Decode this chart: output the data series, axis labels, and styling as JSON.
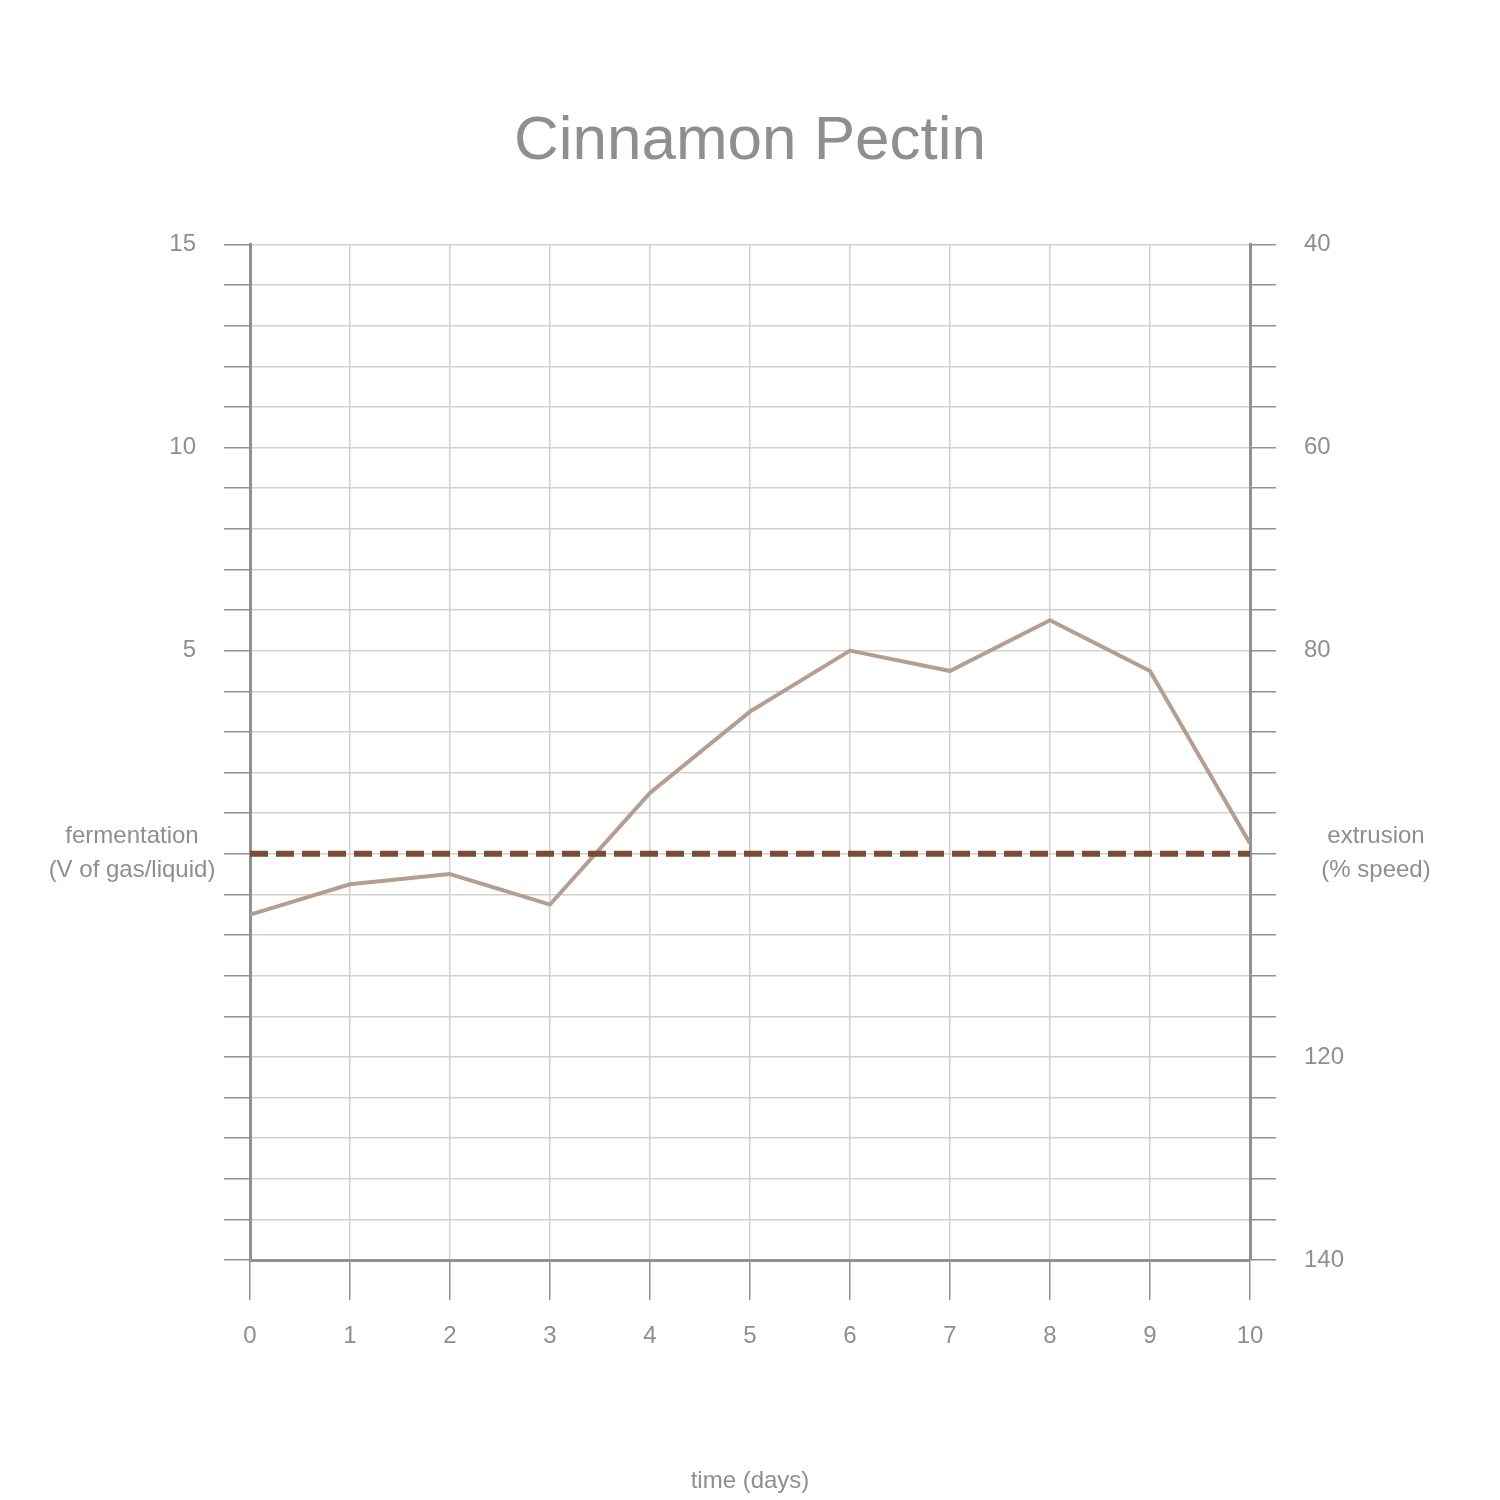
{
  "chart_data": {
    "type": "line",
    "title": "Cinnamon Pectin",
    "xlabel": "time (days)",
    "ylabel": "fermentation (V of gas/liquid)",
    "y2label": "extrusion (% speed)",
    "x": [
      0,
      1,
      2,
      3,
      4,
      5,
      6,
      7,
      8,
      9,
      10
    ],
    "xlim": [
      0,
      10
    ],
    "xticks": [
      0,
      1,
      2,
      3,
      4,
      5,
      6,
      7,
      8,
      9,
      10
    ],
    "ylim": [
      -10,
      15
    ],
    "yticks": [
      {
        "value": -10,
        "label": null
      },
      {
        "value": -9,
        "label": null
      },
      {
        "value": -8,
        "label": null
      },
      {
        "value": -7,
        "label": null
      },
      {
        "value": -6,
        "label": null
      },
      {
        "value": -5,
        "label": null
      },
      {
        "value": -4,
        "label": null
      },
      {
        "value": -3,
        "label": null
      },
      {
        "value": -2,
        "label": null
      },
      {
        "value": -1,
        "label": null
      },
      {
        "value": 0,
        "label": null
      },
      {
        "value": 1,
        "label": null
      },
      {
        "value": 2,
        "label": null
      },
      {
        "value": 3,
        "label": null
      },
      {
        "value": 4,
        "label": null
      },
      5,
      {
        "value": 6,
        "label": null
      },
      {
        "value": 7,
        "label": null
      },
      {
        "value": 8,
        "label": null
      },
      {
        "value": 9,
        "label": null
      },
      10,
      {
        "value": 11,
        "label": null
      },
      {
        "value": 12,
        "label": null
      },
      {
        "value": 13,
        "label": null
      },
      {
        "value": 14,
        "label": null
      },
      15
    ],
    "y2lim": [
      140,
      40
    ],
    "y2ticks": [
      40,
      {
        "value": 44,
        "label": null
      },
      {
        "value": 48,
        "label": null
      },
      {
        "value": 52,
        "label": null
      },
      {
        "value": 56,
        "label": null
      },
      60,
      {
        "value": 64,
        "label": null
      },
      {
        "value": 68,
        "label": null
      },
      {
        "value": 72,
        "label": null
      },
      {
        "value": 76,
        "label": null
      },
      80,
      {
        "value": 84,
        "label": null
      },
      {
        "value": 88,
        "label": null
      },
      {
        "value": 92,
        "label": null
      },
      {
        "value": 96,
        "label": null
      },
      {
        "value": 100,
        "label": null
      },
      {
        "value": 104,
        "label": null
      },
      {
        "value": 108,
        "label": null
      },
      {
        "value": 112,
        "label": null
      },
      {
        "value": 116,
        "label": null
      },
      120,
      {
        "value": 124,
        "label": null
      },
      {
        "value": 128,
        "label": null
      },
      {
        "value": 132,
        "label": null
      },
      {
        "value": 136,
        "label": null
      },
      140
    ],
    "grid": true,
    "legend": false,
    "marker": "none",
    "series": [
      {
        "color": "#b59e8f",
        "line_style": "solid",
        "values": [
          -1.5,
          -0.75,
          -0.5,
          -1.25,
          1.5,
          3.5,
          5,
          4.5,
          5.75,
          4.5,
          0.25
        ]
      },
      {
        "color": "#7a4b35",
        "line_style": "dashed",
        "axis": "y2",
        "values": [
          100,
          100,
          100,
          100,
          100,
          100,
          100,
          100,
          100,
          100,
          100
        ]
      }
    ]
  }
}
